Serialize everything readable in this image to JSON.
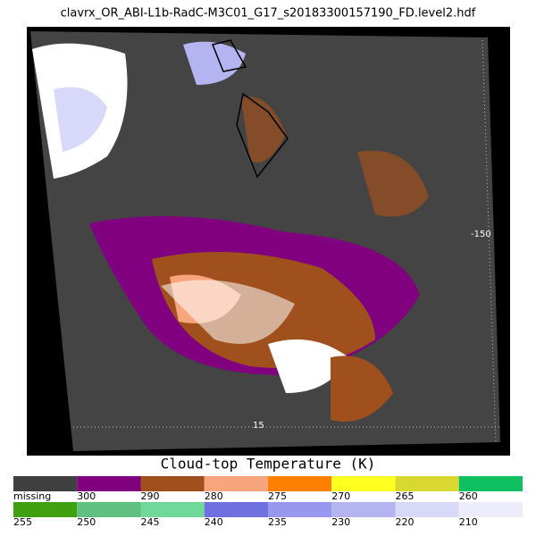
{
  "header": {
    "title": "clavrx_OR_ABI-L1b-RadC-M3C01_G17_s20183300157190_FD.level2.hdf"
  },
  "map": {
    "labels": {
      "longitude": "-150",
      "latitude": "15"
    }
  },
  "colorbar": {
    "title": "Cloud-top Temperature (K)",
    "rows": [
      [
        {
          "label": "missing",
          "color": "#404040"
        },
        {
          "label": "300",
          "color": "#800080"
        },
        {
          "label": "290",
          "color": "#a0501c"
        },
        {
          "label": "280",
          "color": "#f8a47c"
        },
        {
          "label": "275",
          "color": "#ff7f00"
        },
        {
          "label": "270",
          "color": "#ffff20"
        },
        {
          "label": "265",
          "color": "#d8d830"
        },
        {
          "label": "260",
          "color": "#10c060"
        }
      ],
      [
        {
          "label": "255",
          "color": "#40a010"
        },
        {
          "label": "250",
          "color": "#60c080"
        },
        {
          "label": "245",
          "color": "#70d898"
        },
        {
          "label": "240",
          "color": "#7070e0"
        },
        {
          "label": "235",
          "color": "#9898f0"
        },
        {
          "label": "230",
          "color": "#b4b4f0"
        },
        {
          "label": "220",
          "color": "#d8d8f8"
        },
        {
          "label": "210",
          "color": "#ececfa"
        }
      ]
    ]
  }
}
